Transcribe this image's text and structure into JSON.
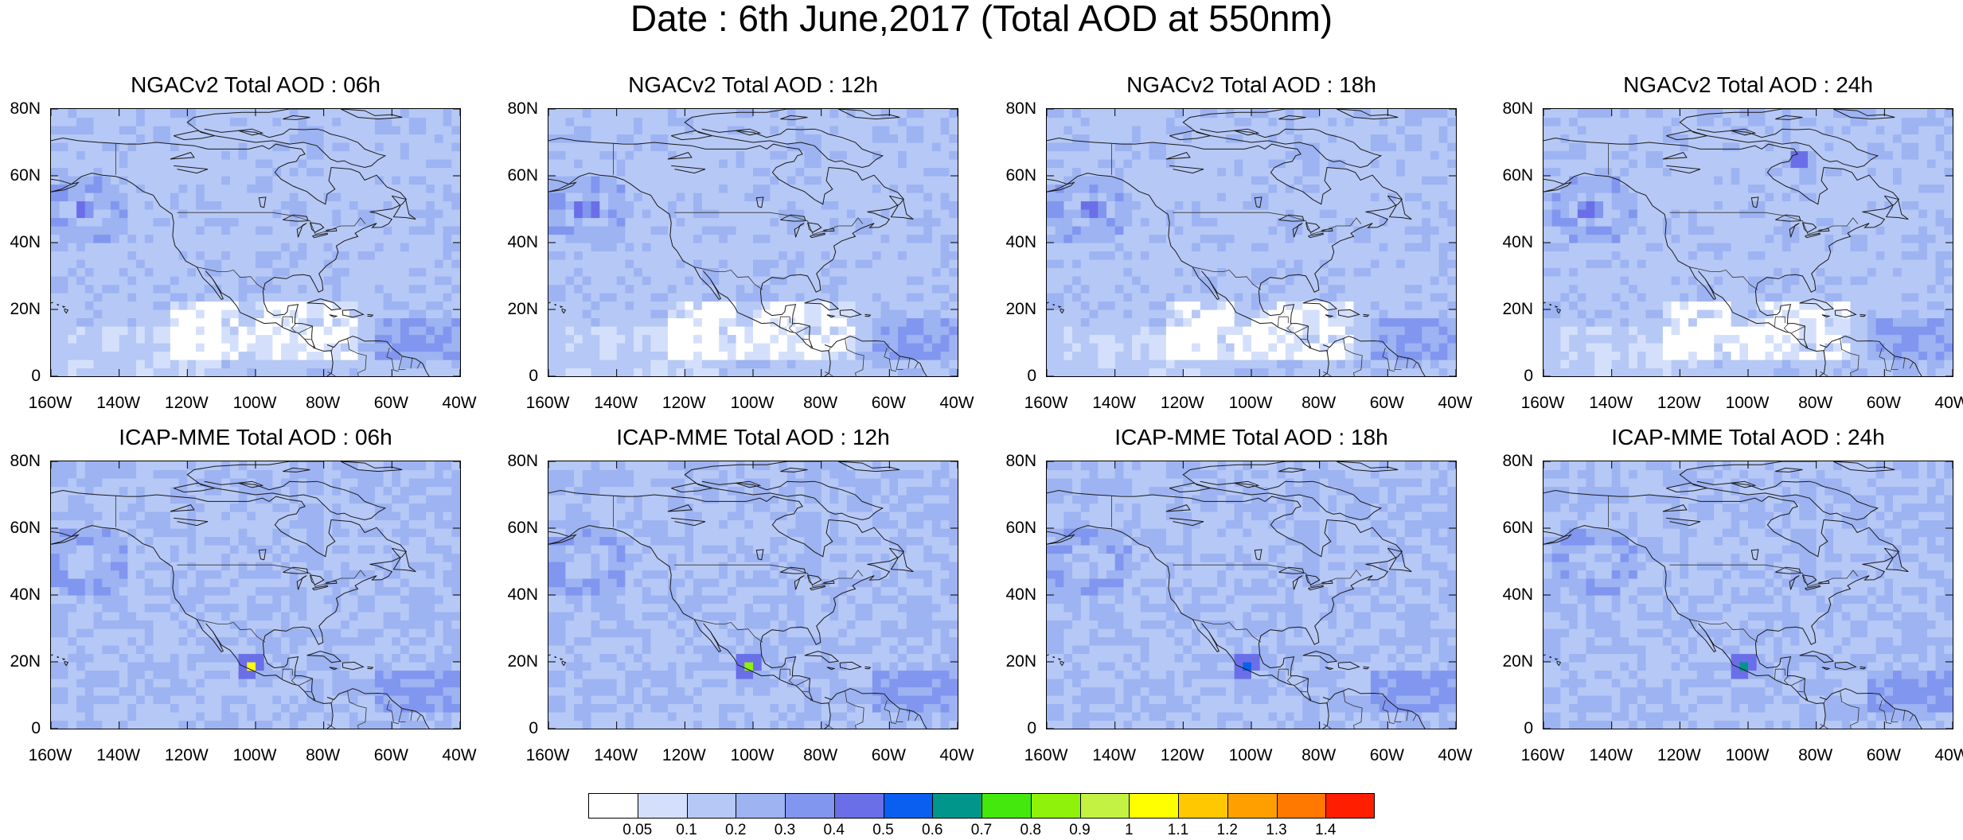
{
  "title": "Date : 6th June,2017 (Total AOD at 550nm)",
  "panels": [
    {
      "title": "NGACv2 Total AOD : 06h",
      "model": "NGACv2",
      "hour": "06h"
    },
    {
      "title": "NGACv2 Total AOD : 12h",
      "model": "NGACv2",
      "hour": "12h"
    },
    {
      "title": "NGACv2 Total AOD : 18h",
      "model": "NGACv2",
      "hour": "18h"
    },
    {
      "title": "NGACv2 Total AOD : 24h",
      "model": "NGACv2",
      "hour": "24h"
    },
    {
      "title": "ICAP-MME Total AOD : 06h",
      "model": "ICAP-MME",
      "hour": "06h"
    },
    {
      "title": "ICAP-MME Total AOD : 12h",
      "model": "ICAP-MME",
      "hour": "12h"
    },
    {
      "title": "ICAP-MME Total AOD : 18h",
      "model": "ICAP-MME",
      "hour": "18h"
    },
    {
      "title": "ICAP-MME Total AOD : 24h",
      "model": "ICAP-MME",
      "hour": "24h"
    }
  ],
  "lat_ticks": [
    "80N",
    "60N",
    "40N",
    "20N",
    "0"
  ],
  "lon_ticks": [
    "160W",
    "140W",
    "120W",
    "100W",
    "80W",
    "60W",
    "40W"
  ],
  "extent": {
    "lon_min": -160,
    "lon_max": -40,
    "lat_min": 0,
    "lat_max": 80
  },
  "colorbar": {
    "labels": [
      "0.05",
      "0.1",
      "0.2",
      "0.3",
      "0.4",
      "0.5",
      "0.6",
      "0.7",
      "0.8",
      "0.9",
      "1",
      "1.1",
      "1.2",
      "1.3",
      "1.4"
    ],
    "colors": [
      "#ffffff",
      "#d4e0fb",
      "#b6c8f5",
      "#9db3f2",
      "#8196ef",
      "#6a6fe8",
      "#0a5ff0",
      "#00968c",
      "#44e80c",
      "#8ef20a",
      "#c4f242",
      "#ffff00",
      "#ffc800",
      "#ffa000",
      "#ff7800",
      "#ff1e00"
    ]
  }
}
